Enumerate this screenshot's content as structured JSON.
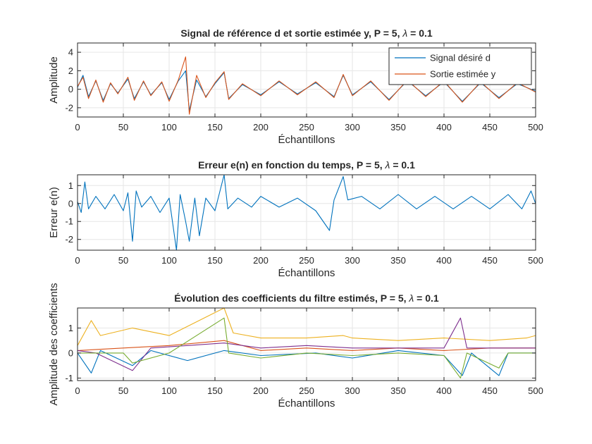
{
  "figure": {
    "background": "#ffffff",
    "axes_color": "#262626",
    "grid_color": "#e6e6e6"
  },
  "chart_data": [
    {
      "type": "line",
      "title": "Signal de référence d et sortie estimée y, P = 5, λ = 0.1",
      "xlabel": "Échantillons",
      "ylabel": "Amplitude",
      "xlim": [
        0,
        500
      ],
      "ylim": [
        -3,
        5
      ],
      "xticks": [
        0,
        50,
        100,
        150,
        200,
        250,
        300,
        350,
        400,
        450,
        500
      ],
      "yticks": [
        -2,
        0,
        2,
        4
      ],
      "grid": true,
      "legend_position": "top-right",
      "series": [
        {
          "name": "Signal désiré d",
          "color": "#0072bd",
          "points": [
            [
              0,
              0.2
            ],
            [
              6,
              1.5
            ],
            [
              12,
              -0.8
            ],
            [
              20,
              0.9
            ],
            [
              28,
              -1.2
            ],
            [
              36,
              0.6
            ],
            [
              44,
              -0.4
            ],
            [
              55,
              1.1
            ],
            [
              62,
              -1.0
            ],
            [
              72,
              0.8
            ],
            [
              80,
              -0.6
            ],
            [
              92,
              0.7
            ],
            [
              100,
              -1.1
            ],
            [
              110,
              0.9
            ],
            [
              118,
              2.0
            ],
            [
              122,
              -2.3
            ],
            [
              130,
              1.0
            ],
            [
              140,
              -0.8
            ],
            [
              150,
              0.6
            ],
            [
              160,
              1.8
            ],
            [
              165,
              -1.0
            ],
            [
              180,
              0.5
            ],
            [
              200,
              -0.6
            ],
            [
              220,
              0.8
            ],
            [
              240,
              -0.5
            ],
            [
              260,
              0.7
            ],
            [
              280,
              -0.8
            ],
            [
              290,
              1.5
            ],
            [
              300,
              -0.6
            ],
            [
              320,
              0.8
            ],
            [
              340,
              -1.1
            ],
            [
              360,
              0.9
            ],
            [
              380,
              -0.7
            ],
            [
              400,
              0.8
            ],
            [
              420,
              -1.3
            ],
            [
              440,
              0.7
            ],
            [
              460,
              -0.9
            ],
            [
              480,
              0.6
            ],
            [
              500,
              -0.2
            ]
          ]
        },
        {
          "name": "Sortie estimée y",
          "color": "#d95319",
          "points": [
            [
              0,
              0.3
            ],
            [
              6,
              1.3
            ],
            [
              12,
              -1.0
            ],
            [
              20,
              1.0
            ],
            [
              28,
              -1.4
            ],
            [
              36,
              0.7
            ],
            [
              44,
              -0.5
            ],
            [
              55,
              1.3
            ],
            [
              62,
              -1.2
            ],
            [
              72,
              0.9
            ],
            [
              80,
              -0.7
            ],
            [
              92,
              0.8
            ],
            [
              100,
              -1.3
            ],
            [
              110,
              1.0
            ],
            [
              118,
              3.5
            ],
            [
              122,
              -2.7
            ],
            [
              130,
              1.5
            ],
            [
              140,
              -0.9
            ],
            [
              150,
              0.7
            ],
            [
              160,
              1.9
            ],
            [
              165,
              -1.1
            ],
            [
              180,
              0.6
            ],
            [
              200,
              -0.7
            ],
            [
              220,
              0.9
            ],
            [
              240,
              -0.6
            ],
            [
              260,
              0.8
            ],
            [
              280,
              -0.9
            ],
            [
              290,
              1.6
            ],
            [
              300,
              -0.7
            ],
            [
              320,
              0.9
            ],
            [
              340,
              -1.2
            ],
            [
              360,
              1.0
            ],
            [
              380,
              -0.8
            ],
            [
              400,
              0.9
            ],
            [
              420,
              -1.4
            ],
            [
              440,
              0.8
            ],
            [
              460,
              -1.0
            ],
            [
              480,
              0.7
            ],
            [
              500,
              -0.3
            ]
          ]
        }
      ]
    },
    {
      "type": "line",
      "title": "Erreur e(n) en fonction du temps, P = 5, λ = 0.1",
      "xlabel": "Échantillons",
      "ylabel": "Erreur e(n)",
      "xlim": [
        0,
        500
      ],
      "ylim": [
        -2.6,
        1.6
      ],
      "xticks": [
        0,
        50,
        100,
        150,
        200,
        250,
        300,
        350,
        400,
        450,
        500
      ],
      "yticks": [
        -2,
        -1,
        0,
        1
      ],
      "grid": true,
      "series": [
        {
          "name": "",
          "color": "#0072bd",
          "points": [
            [
              0,
              0.1
            ],
            [
              4,
              -0.5
            ],
            [
              8,
              1.2
            ],
            [
              12,
              -0.3
            ],
            [
              20,
              0.4
            ],
            [
              30,
              -0.3
            ],
            [
              40,
              0.5
            ],
            [
              50,
              -0.4
            ],
            [
              55,
              0.6
            ],
            [
              60,
              -2.1
            ],
            [
              64,
              0.7
            ],
            [
              70,
              -0.2
            ],
            [
              80,
              0.4
            ],
            [
              90,
              -0.5
            ],
            [
              100,
              0.3
            ],
            [
              108,
              -2.6
            ],
            [
              112,
              0.5
            ],
            [
              118,
              -1.0
            ],
            [
              122,
              -2.1
            ],
            [
              128,
              0.3
            ],
            [
              133,
              -1.8
            ],
            [
              140,
              0.3
            ],
            [
              150,
              -0.4
            ],
            [
              160,
              1.6
            ],
            [
              164,
              -0.3
            ],
            [
              175,
              0.3
            ],
            [
              190,
              -0.2
            ],
            [
              200,
              0.4
            ],
            [
              220,
              -0.2
            ],
            [
              240,
              0.3
            ],
            [
              260,
              -0.4
            ],
            [
              275,
              -1.5
            ],
            [
              280,
              0.2
            ],
            [
              290,
              1.5
            ],
            [
              295,
              0.2
            ],
            [
              310,
              0.4
            ],
            [
              330,
              -0.3
            ],
            [
              350,
              0.5
            ],
            [
              370,
              -0.3
            ],
            [
              390,
              0.4
            ],
            [
              410,
              -0.3
            ],
            [
              430,
              0.4
            ],
            [
              450,
              -0.3
            ],
            [
              470,
              0.5
            ],
            [
              485,
              -0.3
            ],
            [
              495,
              0.7
            ],
            [
              500,
              0.0
            ]
          ]
        }
      ]
    },
    {
      "type": "line",
      "title": "Évolution des coefficients du filtre estimés, P = 5, λ = 0.1",
      "xlabel": "Échantillons",
      "ylabel": "Amplitude des coefficients",
      "xlim": [
        0,
        500
      ],
      "ylim": [
        -1.1,
        1.8
      ],
      "xticks": [
        0,
        50,
        100,
        150,
        200,
        250,
        300,
        350,
        400,
        450,
        500
      ],
      "yticks": [
        -1,
        0,
        1
      ],
      "grid": true,
      "series": [
        {
          "name": "",
          "color": "#0072bd",
          "points": [
            [
              0,
              0.0
            ],
            [
              15,
              -0.8
            ],
            [
              25,
              0.1
            ],
            [
              60,
              -0.5
            ],
            [
              80,
              0.1
            ],
            [
              120,
              -0.3
            ],
            [
              160,
              0.1
            ],
            [
              200,
              -0.1
            ],
            [
              260,
              0.0
            ],
            [
              300,
              -0.2
            ],
            [
              350,
              0.1
            ],
            [
              400,
              -0.1
            ],
            [
              420,
              -0.9
            ],
            [
              430,
              0.0
            ],
            [
              460,
              -0.9
            ],
            [
              470,
              0.0
            ],
            [
              500,
              0.0
            ]
          ]
        },
        {
          "name": "",
          "color": "#d95319",
          "points": [
            [
              0,
              0.1
            ],
            [
              50,
              0.2
            ],
            [
              100,
              0.3
            ],
            [
              160,
              0.5
            ],
            [
              200,
              0.1
            ],
            [
              250,
              0.2
            ],
            [
              300,
              0.1
            ],
            [
              350,
              0.2
            ],
            [
              400,
              0.1
            ],
            [
              450,
              0.2
            ],
            [
              500,
              0.2
            ]
          ]
        },
        {
          "name": "",
          "color": "#edb120",
          "points": [
            [
              0,
              0.3
            ],
            [
              15,
              1.3
            ],
            [
              25,
              0.7
            ],
            [
              60,
              1.0
            ],
            [
              100,
              0.7
            ],
            [
              160,
              1.8
            ],
            [
              170,
              0.8
            ],
            [
              200,
              0.6
            ],
            [
              250,
              0.6
            ],
            [
              290,
              0.7
            ],
            [
              300,
              0.6
            ],
            [
              350,
              0.5
            ],
            [
              400,
              0.6
            ],
            [
              450,
              0.5
            ],
            [
              490,
              0.6
            ],
            [
              500,
              0.7
            ]
          ]
        },
        {
          "name": "",
          "color": "#7e2f8e",
          "points": [
            [
              0,
              0.1
            ],
            [
              20,
              0.0
            ],
            [
              60,
              -0.7
            ],
            [
              80,
              0.2
            ],
            [
              120,
              0.3
            ],
            [
              160,
              0.4
            ],
            [
              200,
              0.2
            ],
            [
              250,
              0.3
            ],
            [
              300,
              0.2
            ],
            [
              350,
              0.2
            ],
            [
              400,
              0.2
            ],
            [
              418,
              1.4
            ],
            [
              425,
              0.2
            ],
            [
              460,
              0.2
            ],
            [
              500,
              0.2
            ]
          ]
        },
        {
          "name": "",
          "color": "#77ac30",
          "points": [
            [
              0,
              0.0
            ],
            [
              50,
              0.0
            ],
            [
              60,
              -0.4
            ],
            [
              100,
              0.0
            ],
            [
              160,
              1.4
            ],
            [
              165,
              0.0
            ],
            [
              200,
              -0.2
            ],
            [
              250,
              0.0
            ],
            [
              300,
              -0.1
            ],
            [
              350,
              0.0
            ],
            [
              400,
              -0.1
            ],
            [
              418,
              -1.0
            ],
            [
              425,
              0.0
            ],
            [
              460,
              -0.6
            ],
            [
              470,
              0.0
            ],
            [
              500,
              0.0
            ]
          ]
        }
      ]
    }
  ]
}
